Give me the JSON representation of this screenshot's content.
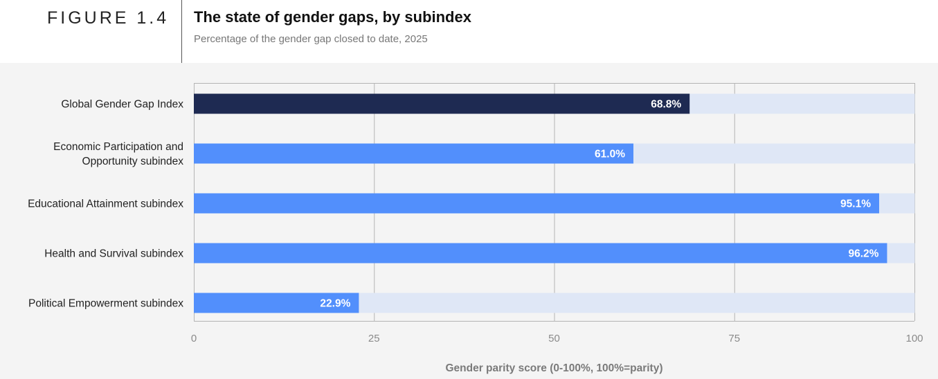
{
  "header": {
    "figure_label": "FIGURE 1.4",
    "title": "The state of gender gaps, by subindex",
    "subtitle": "Percentage of the gender gap closed to date, 2025"
  },
  "colors": {
    "highlight_bar": "#1e2a52",
    "bar": "#528ffc",
    "bar_track": "#dfe7f6",
    "gridline": "#b4b4b4",
    "chart_background": "#f4f4f4"
  },
  "chart_data": {
    "type": "bar",
    "orientation": "horizontal",
    "categories": [
      [
        "Global Gender Gap Index"
      ],
      [
        "Economic Participation and",
        "Opportunity subindex"
      ],
      [
        "Educational Attainment subindex"
      ],
      [
        "Health and Survival subindex"
      ],
      [
        "Political Empowerment subindex"
      ]
    ],
    "values": [
      68.8,
      61.0,
      95.1,
      96.2,
      22.9
    ],
    "value_labels": [
      "68.8%",
      "61.0%",
      "95.1%",
      "96.2%",
      "22.9%"
    ],
    "highlight_index": 0,
    "xlabel": "Gender parity score (0-100%, 100%=parity)",
    "xlim": [
      0,
      100
    ],
    "xticks": [
      0,
      25,
      50,
      75,
      100
    ],
    "xtick_labels": [
      "0",
      "25",
      "50",
      "75",
      "100"
    ],
    "grid": true,
    "legend": "none"
  }
}
